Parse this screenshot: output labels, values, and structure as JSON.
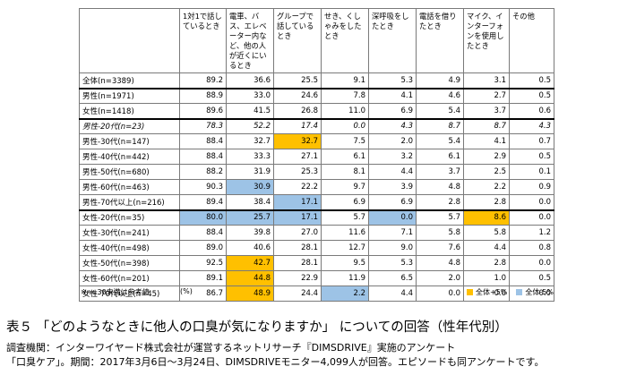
{
  "table": {
    "headers": [
      "",
      "1対1で話しているとき",
      "電車、バス、エレベーター内など、他の人が近くにいるとき",
      "グループで話しているとき",
      "せき、くしゃみをしたとき",
      "深呼吸をしたとき",
      "電話を借りたとき",
      "マイク、インターフォンを使用したとき",
      "その他"
    ],
    "rows": [
      {
        "label": "全体(n=3389)",
        "values": [
          "89.2",
          "36.6",
          "25.5",
          "9.1",
          "5.3",
          "4.9",
          "3.1",
          "0.5"
        ],
        "hl": [
          "",
          "",
          "",
          "",
          "",
          "",
          "",
          ""
        ]
      },
      {
        "label": "男性(n=1971)",
        "values": [
          "88.9",
          "33.0",
          "24.6",
          "7.8",
          "4.1",
          "4.6",
          "2.7",
          "0.5"
        ],
        "hl": [
          "",
          "",
          "",
          "",
          "",
          "",
          "",
          ""
        ]
      },
      {
        "label": "女性(n=1418)",
        "values": [
          "89.6",
          "41.5",
          "26.8",
          "11.0",
          "6.9",
          "5.4",
          "3.7",
          "0.6"
        ],
        "hl": [
          "",
          "",
          "",
          "",
          "",
          "",
          "",
          ""
        ]
      },
      {
        "label": "男性-20代(n=23)",
        "values": [
          "78.3",
          "52.2",
          "17.4",
          "0.0",
          "4.3",
          "8.7",
          "8.7",
          "4.3"
        ],
        "hl": [
          "",
          "",
          "",
          "",
          "",
          "",
          "",
          ""
        ],
        "italic": true
      },
      {
        "label": "男性-30代(n=147)",
        "values": [
          "88.4",
          "32.7",
          "32.7",
          "7.5",
          "2.0",
          "5.4",
          "4.1",
          "0.7"
        ],
        "hl": [
          "",
          "",
          "up",
          "",
          "",
          "",
          "",
          ""
        ]
      },
      {
        "label": "男性-40代(n=442)",
        "values": [
          "88.4",
          "33.3",
          "27.1",
          "6.1",
          "3.2",
          "6.1",
          "2.9",
          "0.5"
        ],
        "hl": [
          "",
          "",
          "",
          "",
          "",
          "",
          "",
          ""
        ]
      },
      {
        "label": "男性-50代(n=680)",
        "values": [
          "88.2",
          "31.9",
          "25.3",
          "8.1",
          "4.4",
          "3.7",
          "2.5",
          "0.1"
        ],
        "hl": [
          "",
          "",
          "",
          "",
          "",
          "",
          "",
          ""
        ]
      },
      {
        "label": "男性-60代(n=463)",
        "values": [
          "90.3",
          "30.9",
          "22.2",
          "9.7",
          "3.9",
          "4.8",
          "2.2",
          "0.9"
        ],
        "hl": [
          "",
          "down",
          "",
          "",
          "",
          "",
          "",
          ""
        ]
      },
      {
        "label": "男性-70代以上(n=216)",
        "values": [
          "89.4",
          "38.4",
          "17.1",
          "6.9",
          "6.9",
          "2.8",
          "2.8",
          "0.0"
        ],
        "hl": [
          "",
          "",
          "down",
          "",
          "",
          "",
          "",
          ""
        ]
      },
      {
        "label": "女性-20代(n=35)",
        "values": [
          "80.0",
          "25.7",
          "17.1",
          "5.7",
          "0.0",
          "5.7",
          "8.6",
          "0.0"
        ],
        "hl": [
          "down",
          "down",
          "down",
          "",
          "down",
          "",
          "up",
          ""
        ]
      },
      {
        "label": "女性-30代(n=241)",
        "values": [
          "88.4",
          "39.8",
          "27.0",
          "11.6",
          "7.1",
          "5.8",
          "5.8",
          "1.2"
        ],
        "hl": [
          "",
          "",
          "",
          "",
          "",
          "",
          "",
          ""
        ]
      },
      {
        "label": "女性-40代(n=498)",
        "values": [
          "89.0",
          "40.6",
          "28.1",
          "12.7",
          "9.0",
          "7.6",
          "4.4",
          "0.8"
        ],
        "hl": [
          "",
          "",
          "",
          "",
          "",
          "",
          "",
          ""
        ]
      },
      {
        "label": "女性-50代(n=398)",
        "values": [
          "92.5",
          "42.7",
          "28.1",
          "9.5",
          "5.3",
          "4.8",
          "2.8",
          "0.0"
        ],
        "hl": [
          "",
          "up",
          "",
          "",
          "",
          "",
          "",
          ""
        ]
      },
      {
        "label": "女性-60代(n=201)",
        "values": [
          "89.1",
          "44.8",
          "22.9",
          "11.9",
          "6.5",
          "2.0",
          "1.0",
          "0.5"
        ],
        "hl": [
          "",
          "up",
          "",
          "",
          "",
          "",
          "",
          ""
        ]
      },
      {
        "label": "女性-70代以上(n=45)",
        "values": [
          "86.7",
          "48.9",
          "24.4",
          "2.2",
          "4.4",
          "0.0",
          "0.0",
          "0.0"
        ],
        "hl": [
          "",
          "up",
          "",
          "down",
          "",
          "",
          "",
          ""
        ]
      }
    ]
  },
  "footnote": "※n=30未満は参考値",
  "unit": "(%)",
  "legend": {
    "up_label": "全体+5%",
    "down_label": "全体-5%",
    "up_color": "#ffc000",
    "down_color": "#9dc3e6"
  },
  "caption": "表５ 「どのようなときに他人の口臭が気になりますか」 についての回答（性年代別）",
  "source_line1": "調査機関：インターワイヤード株式会社が運営するネットリサーチ『DIMSDRIVE』実施のアンケート",
  "source_line2": "「口臭ケア」。期間：2017年3月6日～3月24日、DIMSDRIVEモニター4,099人が回答。エピソードも同アンケートです。"
}
